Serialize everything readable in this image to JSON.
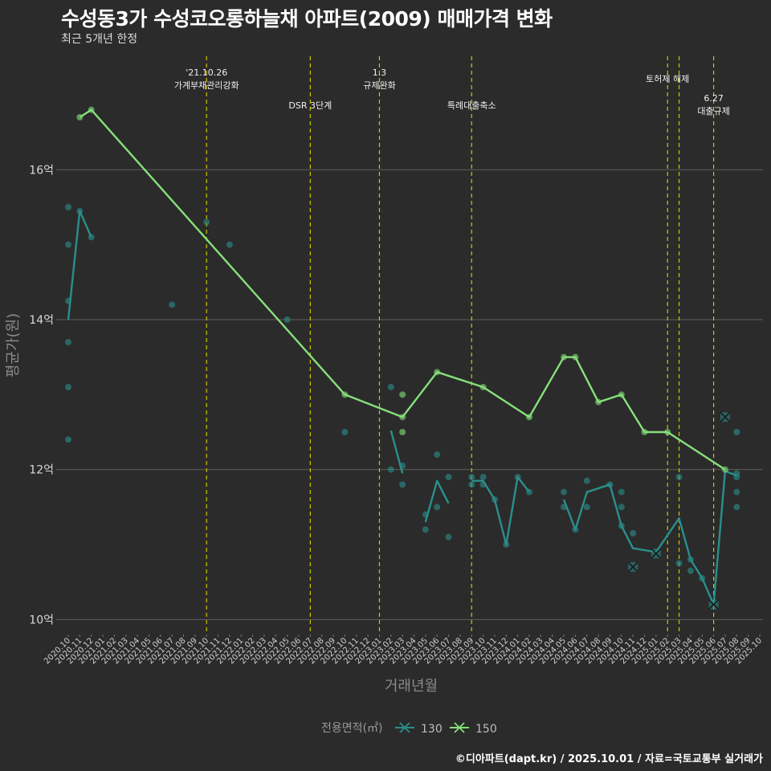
{
  "title": "수성동3가 수성코오롱하늘채 아파트(2009) 매매가격 변화",
  "subtitle": "최근 5개년 한정",
  "caption": "©디아파트(dapt.kr) / 2025.10.01 / 자료=국토교통부 실거래가",
  "colors": {
    "background": "#2b2b2b",
    "s130": "#2a8f8c",
    "s150": "#86e07a",
    "vline": "#c8c800",
    "grid": "#5e5e5e"
  },
  "chart_data": {
    "type": "line",
    "title": "수성동3가 수성코오롱하늘채 아파트(2009) 매매가격 변화",
    "xlabel": "거래년월",
    "ylabel": "평균가(원)",
    "ylim": [
      9.8,
      17.6
    ],
    "yticks": [
      10,
      12,
      14,
      16
    ],
    "ytick_labels": [
      "10억",
      "12억",
      "14억",
      "16억"
    ],
    "x_categories": [
      "2020.10",
      "2020.11",
      "2020.12",
      "2021.01",
      "2021.02",
      "2021.03",
      "2021.04",
      "2021.05",
      "2021.06",
      "2021.07",
      "2021.08",
      "2021.09",
      "2021.10",
      "2021.11",
      "2021.12",
      "2022.01",
      "2022.02",
      "2022.03",
      "2022.04",
      "2022.05",
      "2022.06",
      "2022.07",
      "2022.08",
      "2022.09",
      "2022.10",
      "2022.11",
      "2022.12",
      "2023.01",
      "2023.02",
      "2023.03",
      "2023.04",
      "2023.05",
      "2023.06",
      "2023.07",
      "2023.08",
      "2023.09",
      "2023.10",
      "2023.11",
      "2023.12",
      "2024.01",
      "2024.02",
      "2024.03",
      "2024.04",
      "2024.05",
      "2024.06",
      "2024.07",
      "2024.08",
      "2024.09",
      "2024.10",
      "2024.11",
      "2024.12",
      "2025.01",
      "2025.02",
      "2025.03",
      "2025.04",
      "2025.05",
      "2025.06",
      "2025.07",
      "2025.08",
      "2025.09",
      "2025.10"
    ],
    "x_tick_labels": [
      "2020.10",
      "2020.11",
      "2020.12",
      "2021.01",
      "2021.02",
      "2021.03",
      "2021.04",
      "2021.05",
      "2021.06",
      "2021.07",
      "2021.08",
      "2021.09",
      "2021.10",
      "2021.11",
      "2021.12",
      "2022.01",
      "2022.02",
      "2022.03",
      "2022.04",
      "2022.05",
      "2022.06",
      "2022.07",
      "2022.08",
      "2022.09",
      "2022.10",
      "2022.11",
      "2022.12",
      "2023.01",
      "2023.02",
      "2023.03",
      "2023.04",
      "2023.05",
      "2023.06",
      "2023.07",
      "2023.08",
      "2023.09",
      "2023.10",
      "2023.11",
      "2023.12",
      "2024.01",
      "2024.02",
      "2024.03",
      "2024.04",
      "2024.05",
      "2024.06",
      "2024.07",
      "2024.08",
      "2024.09",
      "2024.10",
      "2024.11",
      "2024.12",
      "2025.01",
      "2025.02",
      "2025.03",
      "2025.04",
      "2025.05",
      "2025.06",
      "2025.07",
      "2025.08",
      "2025.09",
      "2025.10"
    ],
    "legend": {
      "title": "전용면적(㎡)",
      "position": "bottom",
      "items": [
        "130",
        "150"
      ]
    },
    "events": [
      {
        "x": "2021.10",
        "label": "'21.10.26\n가계부채관리강화",
        "level": 0
      },
      {
        "x": "2022.07",
        "label": "DSR 3단계",
        "level": 2
      },
      {
        "x": "2023.01",
        "label": "1.3\n규제완화",
        "level": 0
      },
      {
        "x": "2023.09",
        "label": "특례대출축소",
        "level": 2
      },
      {
        "x": "2025.02",
        "label": "토허제 해제",
        "level": 1
      },
      {
        "x": "2025.03",
        "label": "",
        "level": 1
      },
      {
        "x": "2025.06",
        "label": "6.27\n대출규제",
        "level": 3
      }
    ],
    "series": [
      {
        "name": "130",
        "lines": [
          [
            [
              "2020.10",
              14.0
            ],
            [
              "2020.11",
              15.45
            ],
            [
              "2020.12",
              15.1
            ]
          ],
          [
            [
              "2023.02",
              12.52
            ],
            [
              "2023.03",
              11.95
            ]
          ],
          [
            [
              "2023.05",
              11.3
            ],
            [
              "2023.06",
              11.85
            ],
            [
              "2023.07",
              11.55
            ]
          ],
          [
            [
              "2023.09",
              11.85
            ],
            [
              "2023.10",
              11.85
            ],
            [
              "2023.11",
              11.6
            ],
            [
              "2023.12",
              11.0
            ],
            [
              "2024.01",
              11.9
            ],
            [
              "2024.02",
              11.7
            ]
          ],
          [
            [
              "2024.05",
              11.6
            ],
            [
              "2024.06",
              11.2
            ],
            [
              "2024.07",
              11.7
            ],
            [
              "2024.09",
              11.8
            ],
            [
              "2024.10",
              11.25
            ],
            [
              "2024.11",
              10.95
            ],
            [
              "2025.01",
              10.9
            ],
            [
              "2025.03",
              11.35
            ],
            [
              "2025.04",
              10.8
            ],
            [
              "2025.05",
              10.55
            ],
            [
              "2025.06",
              10.2
            ],
            [
              "2025.07",
              11.98
            ],
            [
              "2025.08",
              11.92
            ]
          ]
        ],
        "points": [
          [
            "2020.10",
            15.5
          ],
          [
            "2020.10",
            15.0
          ],
          [
            "2020.10",
            14.25
          ],
          [
            "2020.10",
            13.7
          ],
          [
            "2020.10",
            13.1
          ],
          [
            "2020.10",
            12.4
          ],
          [
            "2020.11",
            15.45
          ],
          [
            "2020.12",
            15.1
          ],
          [
            "2021.07",
            14.2
          ],
          [
            "2021.10",
            15.3
          ],
          [
            "2021.12",
            15.0
          ],
          [
            "2022.05",
            14.0
          ],
          [
            "2022.10",
            12.5
          ],
          [
            "2023.02",
            13.1
          ],
          [
            "2023.02",
            12.0
          ],
          [
            "2023.03",
            12.05
          ],
          [
            "2023.03",
            11.8
          ],
          [
            "2023.05",
            11.4
          ],
          [
            "2023.05",
            11.2
          ],
          [
            "2023.06",
            12.2
          ],
          [
            "2023.06",
            11.5
          ],
          [
            "2023.07",
            11.9
          ],
          [
            "2023.07",
            11.1
          ],
          [
            "2023.09",
            11.9
          ],
          [
            "2023.09",
            11.8
          ],
          [
            "2023.10",
            11.9
          ],
          [
            "2023.10",
            11.8
          ],
          [
            "2023.11",
            11.6
          ],
          [
            "2023.12",
            11.0
          ],
          [
            "2024.01",
            11.9
          ],
          [
            "2024.02",
            11.7
          ],
          [
            "2024.05",
            11.7
          ],
          [
            "2024.05",
            11.5
          ],
          [
            "2024.06",
            11.2
          ],
          [
            "2024.07",
            11.85
          ],
          [
            "2024.07",
            11.5
          ],
          [
            "2024.09",
            11.8
          ],
          [
            "2024.10",
            11.7
          ],
          [
            "2024.10",
            11.5
          ],
          [
            "2024.10",
            11.25
          ],
          [
            "2024.11",
            11.15
          ],
          [
            "2025.03",
            11.9
          ],
          [
            "2025.03",
            10.75
          ],
          [
            "2025.04",
            10.8
          ],
          [
            "2025.04",
            10.65
          ],
          [
            "2025.05",
            10.55
          ],
          [
            "2025.08",
            12.5
          ],
          [
            "2025.08",
            11.95
          ],
          [
            "2025.08",
            11.9
          ],
          [
            "2025.08",
            11.7
          ],
          [
            "2025.08",
            11.5
          ]
        ],
        "cancelled": [
          [
            "2024.11",
            10.7
          ],
          [
            "2025.01",
            10.88
          ],
          [
            "2025.06",
            10.2
          ],
          [
            "2025.07",
            12.7
          ]
        ]
      },
      {
        "name": "150",
        "lines": [
          [
            [
              "2020.11",
              16.7
            ],
            [
              "2020.12",
              16.8
            ],
            [
              "2022.10",
              13.0
            ],
            [
              "2023.03",
              12.7
            ],
            [
              "2023.06",
              13.3
            ],
            [
              "2023.10",
              13.1
            ],
            [
              "2024.02",
              12.7
            ],
            [
              "2024.05",
              13.5
            ],
            [
              "2024.06",
              13.5
            ],
            [
              "2024.08",
              12.9
            ],
            [
              "2024.10",
              13.0
            ],
            [
              "2024.12",
              12.5
            ],
            [
              "2025.02",
              12.5
            ],
            [
              "2025.07",
              12.0
            ]
          ]
        ],
        "points": [
          [
            "2020.11",
            16.7
          ],
          [
            "2020.12",
            16.8
          ],
          [
            "2022.10",
            13.0
          ],
          [
            "2023.03",
            13.0
          ],
          [
            "2023.03",
            12.7
          ],
          [
            "2023.03",
            12.5
          ],
          [
            "2023.06",
            13.3
          ],
          [
            "2023.10",
            13.1
          ],
          [
            "2024.02",
            12.7
          ],
          [
            "2024.05",
            13.5
          ],
          [
            "2024.06",
            13.5
          ],
          [
            "2024.08",
            12.9
          ],
          [
            "2024.10",
            13.0
          ],
          [
            "2024.12",
            12.5
          ],
          [
            "2025.02",
            12.5
          ],
          [
            "2025.07",
            12.0
          ]
        ],
        "cancelled": []
      }
    ]
  }
}
